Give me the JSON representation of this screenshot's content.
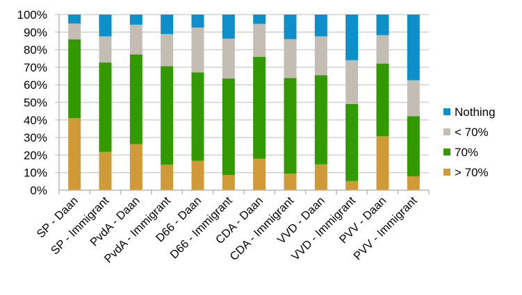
{
  "chart_data": {
    "type": "bar",
    "stacked": true,
    "percent_stacked": true,
    "title": "",
    "xlabel": "",
    "ylabel": "",
    "ylim": [
      0,
      100
    ],
    "y_ticks": [
      "0%",
      "10%",
      "20%",
      "30%",
      "40%",
      "50%",
      "60%",
      "70%",
      "80%",
      "90%",
      "100%"
    ],
    "grid": true,
    "legend_position": "right",
    "categories": [
      "SP - Daan",
      "SP - Immigrant",
      "PvdA - Daan",
      "PvdA - Immigrant",
      "D66 - Daan",
      "D66 - Immigrant",
      "CDA - Daan",
      "CDA - Immigrant",
      "VVD - Daan",
      "VVD - Immigrant",
      "PVV - Daan",
      "PVV - Immigrant"
    ],
    "series": [
      {
        "name": "> 70%",
        "color": "#d09a38",
        "values": [
          41.0,
          21.8,
          26.2,
          14.5,
          16.7,
          8.6,
          18.0,
          9.4,
          14.7,
          5.2,
          30.7,
          7.9
        ]
      },
      {
        "name": "70%",
        "color": "#339900",
        "values": [
          44.9,
          50.9,
          51.1,
          56.1,
          50.4,
          55.0,
          57.9,
          54.5,
          50.8,
          43.9,
          41.4,
          34.2
        ]
      },
      {
        "name": "< 70%",
        "color": "#c4bdb3",
        "values": [
          9.0,
          14.9,
          16.9,
          18.3,
          25.5,
          22.7,
          18.8,
          22.1,
          22.1,
          24.9,
          16.2,
          20.5
        ]
      },
      {
        "name": "Nothing",
        "color": "#0f8fc9",
        "values": [
          5.1,
          12.4,
          5.8,
          11.1,
          7.4,
          13.7,
          5.3,
          14.0,
          12.4,
          26.0,
          11.7,
          37.4
        ]
      }
    ],
    "legend_order": [
      "Nothing",
      "< 70%",
      "70%",
      "> 70%"
    ]
  }
}
